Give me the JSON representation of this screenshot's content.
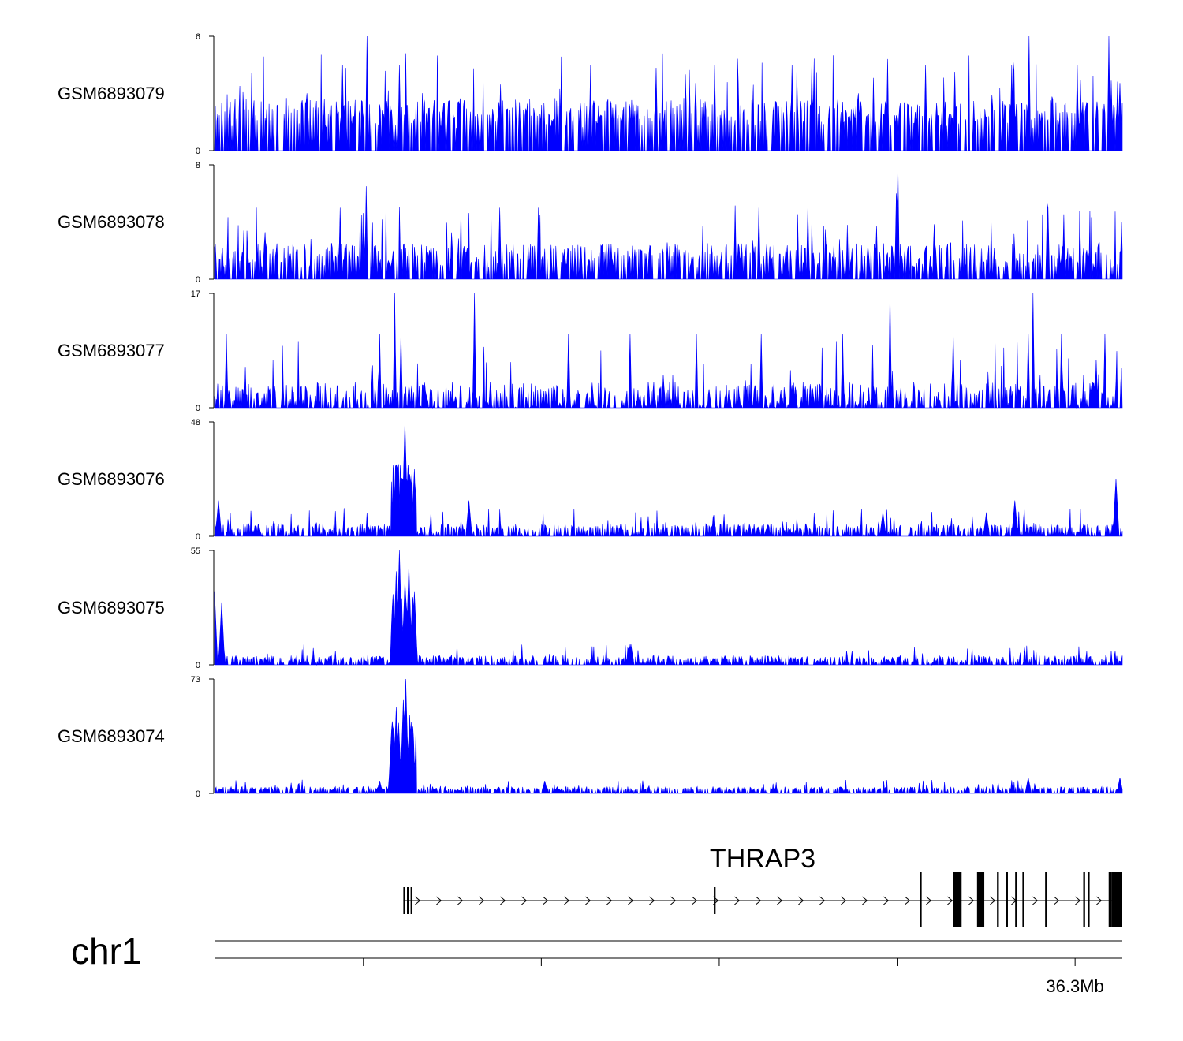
{
  "chart_data": {
    "type": "area",
    "title": "",
    "chromosome": "chr1",
    "gene": "THRAP3",
    "gene_strand": "+",
    "axis_tick_label": "36.3Mb",
    "fill_color": "#0000ff",
    "series": [
      {
        "name": "GSM6893079",
        "ymax": 6,
        "ymin": 0,
        "peaks": [
          [
            0.168,
            6.0
          ],
          [
            0.141,
            4.5
          ],
          [
            0.204,
            4.5
          ],
          [
            0.414,
            4.5
          ],
          [
            0.551,
            4.5
          ],
          [
            0.878,
            4.5
          ],
          [
            0.897,
            6.0
          ],
          [
            0.985,
            6.0
          ],
          [
            0.95,
            4.5
          ],
          [
            0.783,
            4.5
          ],
          [
            0.658,
            4.5
          ],
          [
            0.636,
            4.5
          ]
        ],
        "baseline": 1.2,
        "noise": 2.2
      },
      {
        "name": "GSM6893078",
        "ymax": 8,
        "ymin": 0,
        "peaks": [
          [
            0.167,
            6.5
          ],
          [
            0.138,
            5.0
          ],
          [
            0.314,
            5.0
          ],
          [
            0.357,
            5.0
          ],
          [
            0.6,
            5.0
          ],
          [
            0.654,
            5.0
          ],
          [
            0.752,
            5.0
          ],
          [
            0.751,
            6.0
          ],
          [
            0.753,
            8.0
          ],
          [
            0.918,
            5.0
          ],
          [
            0.999,
            4.0
          ]
        ],
        "baseline": 0.8,
        "noise": 2.5
      },
      {
        "name": "GSM6893077",
        "ymax": 17,
        "ymin": 0,
        "peaks": [
          [
            0.198,
            17.0
          ],
          [
            0.205,
            11.0
          ],
          [
            0.286,
            17.0
          ],
          [
            0.013,
            11.0
          ],
          [
            0.182,
            11.0
          ],
          [
            0.39,
            11.0
          ],
          [
            0.458,
            11.0
          ],
          [
            0.531,
            11.0
          ],
          [
            0.602,
            11.0
          ],
          [
            0.692,
            11.0
          ],
          [
            0.744,
            17.0
          ],
          [
            0.814,
            11.0
          ],
          [
            0.896,
            11.0
          ],
          [
            0.902,
            17.0
          ],
          [
            0.933,
            11.0
          ],
          [
            0.981,
            11.0
          ]
        ],
        "baseline": 0.0,
        "noise": 5.5
      },
      {
        "name": "GSM6893076",
        "ymax": 48,
        "ymin": 0,
        "peaks": [
          [
            0.2,
            30.0
          ],
          [
            0.205,
            20.0
          ],
          [
            0.21,
            48.0
          ],
          [
            0.213,
            30.0
          ],
          [
            0.28,
            15.0
          ],
          [
            0.004,
            15.0
          ],
          [
            0.882,
            15.0
          ],
          [
            0.993,
            24.0
          ],
          [
            0.736,
            10.0
          ],
          [
            0.85,
            10.0
          ]
        ],
        "baseline": 1.0,
        "noise": 6.0
      },
      {
        "name": "GSM6893075",
        "ymax": 55,
        "ymin": 0,
        "peaks": [
          [
            0.0,
            35.0
          ],
          [
            0.008,
            30.0
          ],
          [
            0.2,
            45.0
          ],
          [
            0.204,
            55.0
          ],
          [
            0.21,
            40.0
          ],
          [
            0.214,
            48.0
          ],
          [
            0.22,
            35.0
          ],
          [
            0.459,
            10.0
          ],
          [
            0.457,
            10.0
          ]
        ],
        "baseline": 1.0,
        "noise": 5.0
      },
      {
        "name": "GSM6893074",
        "ymax": 73,
        "ymin": 0,
        "peaks": [
          [
            0.195,
            40.0
          ],
          [
            0.2,
            55.0
          ],
          [
            0.203,
            45.0
          ],
          [
            0.208,
            60.0
          ],
          [
            0.211,
            73.0
          ],
          [
            0.215,
            50.0
          ],
          [
            0.218,
            30.0
          ],
          [
            0.182,
            8.0
          ],
          [
            0.364,
            8.0
          ],
          [
            0.896,
            10.0
          ],
          [
            0.997,
            10.0
          ]
        ],
        "baseline": 1.5,
        "noise": 4.0
      }
    ],
    "gene_model": {
      "start": 0.208,
      "end": 1.0,
      "exons": [
        {
          "pos": 0.208,
          "w": 0.002,
          "tall": true
        },
        {
          "pos": 0.212,
          "w": 0.002,
          "tall": true
        },
        {
          "pos": 0.216,
          "w": 0.002,
          "tall": true
        },
        {
          "pos": 0.55,
          "w": 0.002,
          "tall": true
        },
        {
          "pos": 0.777,
          "w": 0.002,
          "tall": false
        },
        {
          "pos": 0.814,
          "w": 0.009,
          "tall": false
        },
        {
          "pos": 0.84,
          "w": 0.008,
          "tall": false
        },
        {
          "pos": 0.862,
          "w": 0.002,
          "tall": false
        },
        {
          "pos": 0.872,
          "w": 0.002,
          "tall": false
        },
        {
          "pos": 0.882,
          "w": 0.002,
          "tall": false
        },
        {
          "pos": 0.89,
          "w": 0.002,
          "tall": false
        },
        {
          "pos": 0.915,
          "w": 0.002,
          "tall": false
        },
        {
          "pos": 0.957,
          "w": 0.002,
          "tall": false
        },
        {
          "pos": 0.962,
          "w": 0.002,
          "tall": false
        },
        {
          "pos": 0.985,
          "w": 0.003,
          "tall": false
        },
        {
          "pos": 0.988,
          "w": 0.012,
          "tall": false
        }
      ]
    },
    "axis_ticks": [
      0.164,
      0.36,
      0.556,
      0.752,
      0.948
    ],
    "labeled_tick_index": 4
  }
}
